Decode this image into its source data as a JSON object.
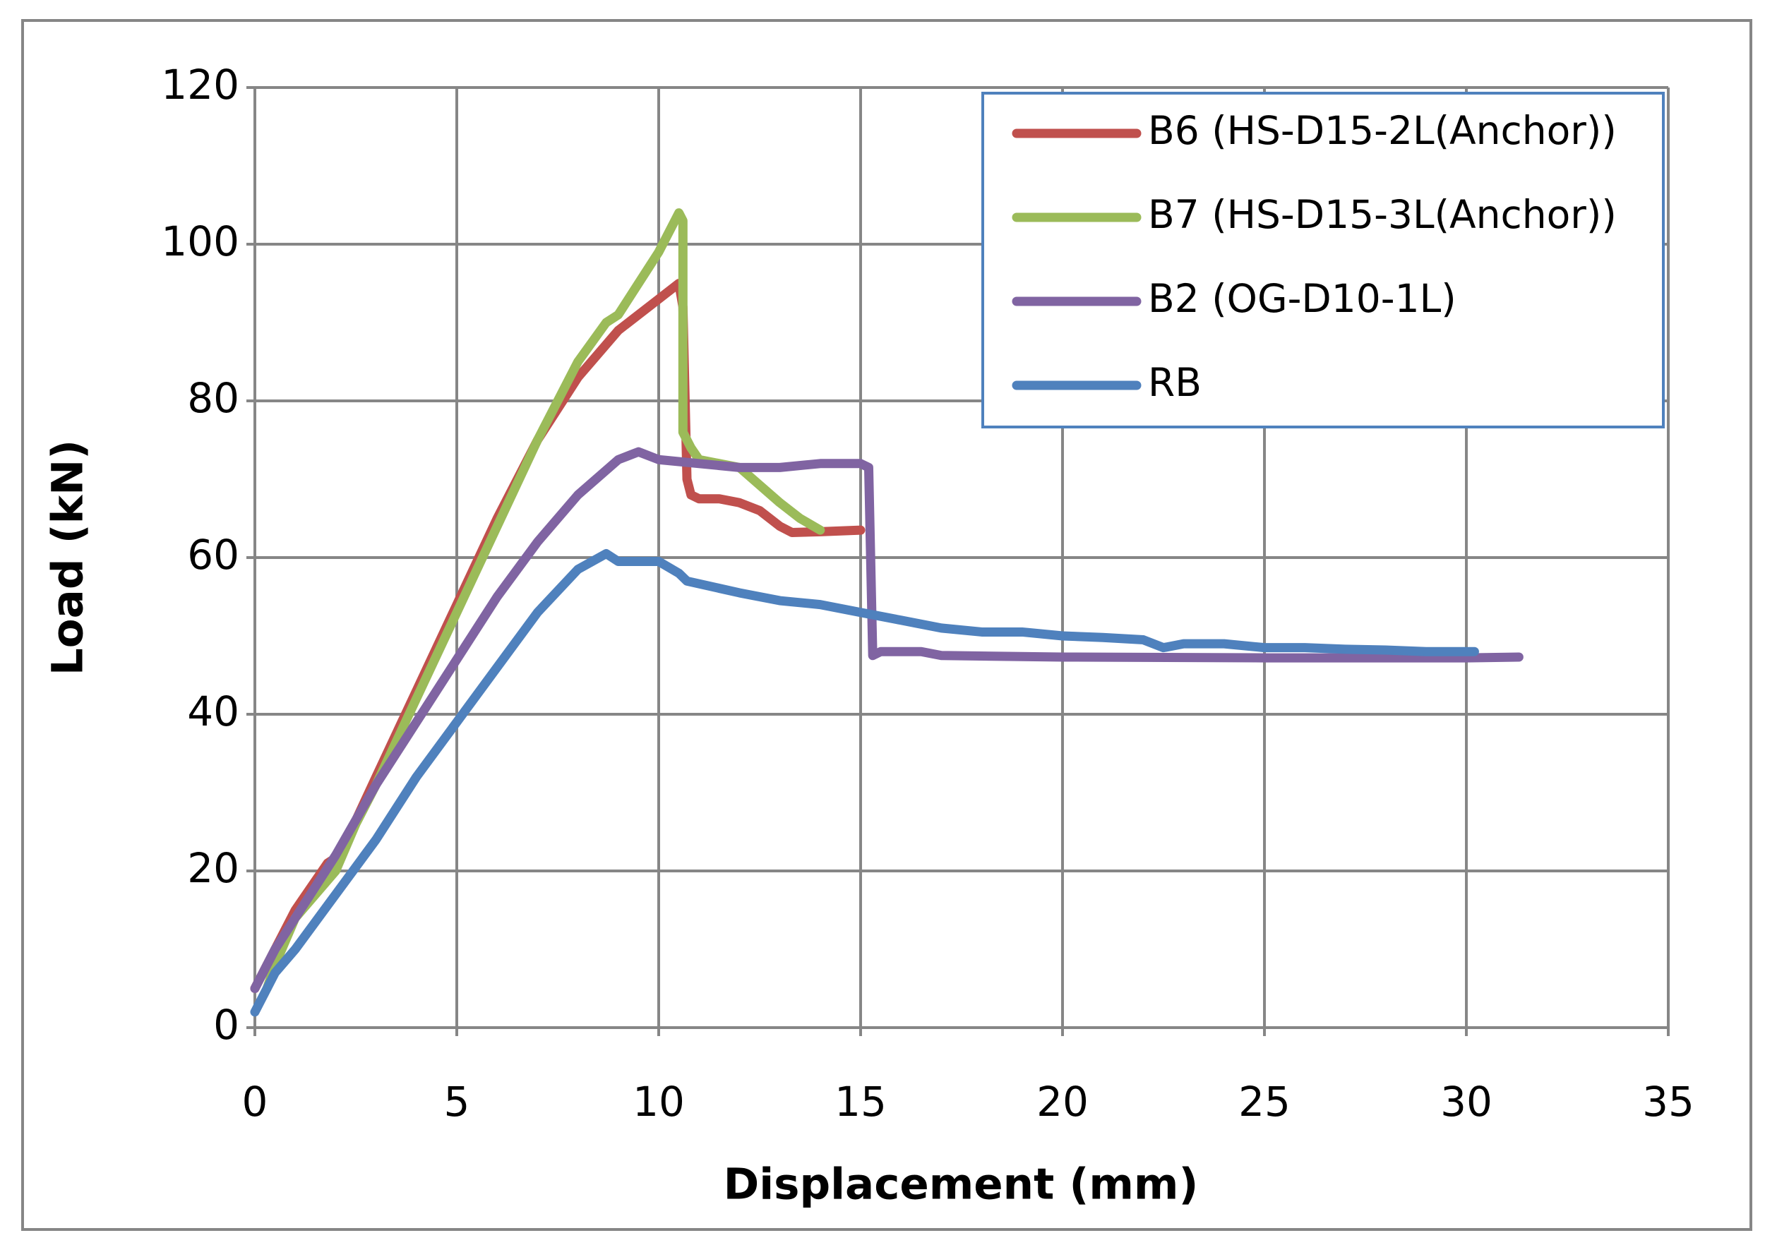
{
  "chart_data": {
    "type": "line",
    "xlabel": "Displacement (mm)",
    "ylabel": "Load (kN)",
    "xlim": [
      0,
      35
    ],
    "xticks": [
      0,
      5,
      10,
      15,
      20,
      25,
      30,
      35
    ],
    "ylim": [
      0,
      120
    ],
    "yticks": [
      0,
      20,
      40,
      60,
      80,
      100,
      120
    ],
    "grid": true,
    "legend": "upper right",
    "series": [
      {
        "name": "B6 (HS-D15-2L(Anchor))",
        "color": "#c0504d",
        "x": [
          0,
          0.5,
          1,
          1.8,
          2.1,
          3,
          4,
          5,
          6,
          7,
          8,
          9,
          10,
          10.5,
          10.6,
          10.7,
          10.8,
          11,
          11.5,
          12,
          12.5,
          13,
          13.3,
          14,
          15
        ],
        "values": [
          5,
          10,
          15,
          21,
          22,
          32,
          43,
          54,
          65,
          75,
          83,
          89,
          93,
          95,
          92,
          70,
          68,
          67.5,
          67.5,
          67,
          66,
          64,
          63.2,
          63.3,
          63.5
        ]
      },
      {
        "name": "B7 (HS-D15-3L(Anchor))",
        "color": "#9bbb59",
        "x": [
          0.3,
          0.5,
          1,
          2,
          2.5,
          3,
          4,
          5,
          6,
          7,
          8,
          8.7,
          9,
          10,
          10.5,
          10.6,
          10.6,
          10.6,
          10.8,
          11,
          12,
          13,
          13.5,
          14
        ],
        "values": [
          5,
          8,
          14,
          20,
          26,
          31,
          42,
          53,
          64,
          75,
          85,
          90,
          91,
          99,
          104,
          103,
          90,
          76,
          74,
          72.5,
          71.5,
          67,
          65,
          63.5
        ]
      },
      {
        "name": "B2 (OG-D10-1L)",
        "color": "#8064a2",
        "x": [
          0,
          0.5,
          1,
          2,
          3,
          4,
          5,
          6,
          7,
          8,
          9,
          9.5,
          10,
          11,
          12,
          13,
          14,
          15,
          15.2,
          15.3,
          15.5,
          16.5,
          17,
          20,
          25,
          30,
          31.3
        ],
        "values": [
          5,
          10,
          14,
          22,
          31,
          39,
          47,
          55,
          62,
          68,
          72.5,
          73.5,
          72.5,
          72,
          71.5,
          71.5,
          72,
          72,
          71.5,
          47.5,
          48,
          48,
          47.5,
          47.3,
          47.2,
          47.2,
          47.3
        ]
      },
      {
        "name": "RB",
        "color": "#4f81bd",
        "x": [
          0,
          0.3,
          0.5,
          1,
          2,
          3,
          4,
          5,
          6,
          7,
          8,
          8.7,
          9,
          10,
          10.5,
          10.7,
          12,
          13,
          14,
          15,
          16,
          17,
          18,
          19,
          20,
          21,
          22,
          22.5,
          23,
          24,
          25,
          26,
          27,
          28,
          29,
          30.2
        ],
        "values": [
          2,
          5,
          7,
          10,
          17,
          24,
          32,
          39,
          46,
          53,
          58.5,
          60.5,
          59.5,
          59.5,
          58,
          57,
          55.5,
          54.5,
          54,
          53,
          52,
          51,
          50.5,
          50.5,
          50,
          49.8,
          49.5,
          48.5,
          49,
          49,
          48.5,
          48.5,
          48.3,
          48.2,
          48,
          48
        ]
      }
    ]
  }
}
